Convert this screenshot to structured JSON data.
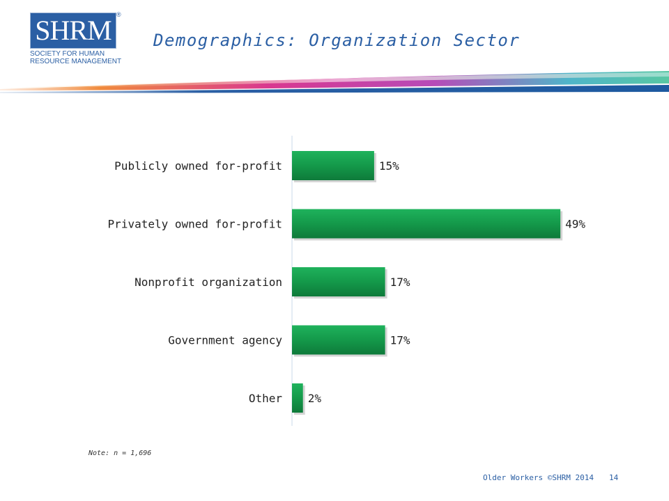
{
  "header": {
    "title": "Demographics: Organization Sector",
    "logo": {
      "mark": "SHRM",
      "registered": "®",
      "tagline": "SOCIETY FOR HUMAN\nRESOURCE MANAGEMENT"
    }
  },
  "chart_data": {
    "type": "bar",
    "orientation": "horizontal",
    "categories": [
      "Publicly owned for-profit",
      "Privately owned for-profit",
      "Nonprofit organization",
      "Government agency",
      "Other"
    ],
    "values": [
      15,
      49,
      17,
      17,
      2
    ],
    "value_labels": [
      "15%",
      "49%",
      "17%",
      "17%",
      "2%"
    ],
    "title": "",
    "xlabel": "",
    "ylabel": "",
    "xlim": [
      0,
      49
    ],
    "grid": false,
    "legend": "none",
    "bar_color": "#14994a"
  },
  "note": "Note: n = 1,696",
  "footer": {
    "text": "Older Workers ©SHRM 2014",
    "page": "14"
  }
}
